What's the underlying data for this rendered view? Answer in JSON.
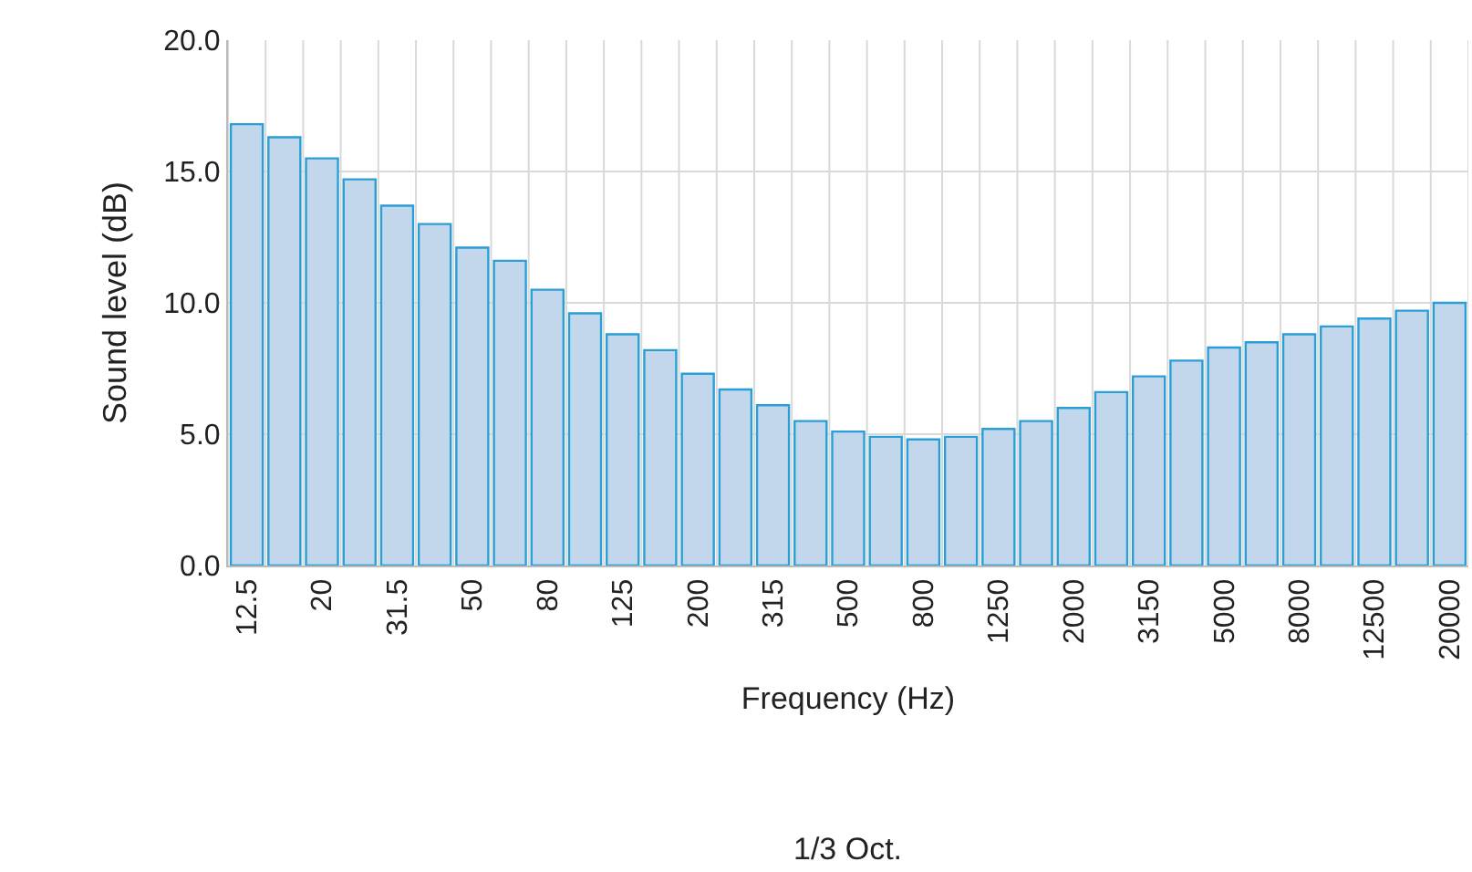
{
  "chart_data": {
    "type": "bar",
    "xlabel": "Frequency (Hz)",
    "ylabel": "Sound level (dB)",
    "annotations": [
      "1/3 Oct."
    ],
    "categories": [
      "12.5",
      null,
      "20",
      null,
      "31.5",
      null,
      "50",
      null,
      "80",
      null,
      "125",
      null,
      "200",
      null,
      "315",
      null,
      "500",
      null,
      "800",
      null,
      "1250",
      null,
      "2000",
      null,
      "3150",
      null,
      "5000",
      null,
      "8000",
      null,
      "12500",
      null,
      "20000"
    ],
    "values": [
      16.8,
      16.3,
      15.5,
      14.7,
      13.7,
      13.0,
      12.1,
      11.6,
      10.5,
      9.6,
      8.8,
      8.2,
      7.3,
      6.7,
      6.1,
      5.5,
      5.1,
      4.9,
      4.8,
      4.9,
      5.2,
      5.5,
      6.0,
      6.6,
      7.2,
      7.8,
      8.3,
      8.5,
      8.8,
      9.1,
      9.4,
      9.7,
      10.0
    ],
    "color": "#c3d7ec",
    "ylim": [
      0,
      20
    ],
    "yticks": [
      {
        "value": 0,
        "label": "0.0"
      },
      {
        "value": 5,
        "label": "5.0"
      },
      {
        "value": 10,
        "label": "10.0"
      },
      {
        "value": 15,
        "label": "15.0"
      },
      {
        "value": 20,
        "label": "20.0"
      }
    ],
    "grid": true
  }
}
